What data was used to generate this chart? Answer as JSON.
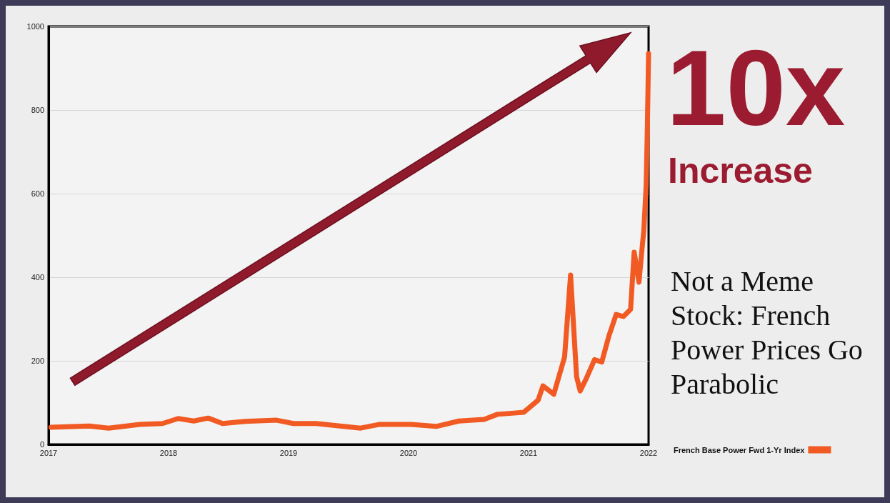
{
  "chart_data": {
    "type": "line",
    "title": "Not a Meme Stock: French Power Prices Go Parabolic",
    "annotations": [
      "10x",
      "Increase"
    ],
    "xlim": [
      2017,
      2022
    ],
    "xticks": [
      2017,
      2018,
      2019,
      2020,
      2021,
      2022
    ],
    "ylim": [
      0,
      1000
    ],
    "yticks": [
      0,
      200,
      400,
      600,
      800,
      1000
    ],
    "grid": "y",
    "legend": "bottom right",
    "marker": "none",
    "line_style": "solid",
    "series": [
      {
        "name": "French Base Power Fwd 1-Yr Index",
        "color": "#f15a22",
        "x": [
          2017.02,
          2017.34,
          2017.5,
          2017.76,
          2017.95,
          2018.08,
          2018.21,
          2018.33,
          2018.45,
          2018.64,
          2018.9,
          2019.04,
          2019.23,
          2019.43,
          2019.6,
          2019.76,
          2020.02,
          2020.23,
          2020.42,
          2020.63,
          2020.74,
          2020.88,
          2020.96,
          2021.08,
          2021.12,
          2021.21,
          2021.3,
          2021.35,
          2021.4,
          2021.43,
          2021.48,
          2021.55,
          2021.61,
          2021.67,
          2021.73,
          2021.79,
          2021.85,
          2021.88,
          2021.92,
          2021.95,
          2021.96,
          2021.98,
          2021.99,
          2022
        ],
        "values": [
          41,
          44,
          39,
          48,
          50,
          62,
          56,
          63,
          50,
          55,
          58,
          50,
          50,
          44,
          39,
          48,
          48,
          43,
          56,
          60,
          72,
          75,
          77,
          106,
          140,
          120,
          209,
          405,
          162,
          128,
          157,
          203,
          197,
          260,
          311,
          306,
          323,
          460,
          388,
          482,
          510,
          620,
          760,
          935
        ]
      }
    ]
  }
}
